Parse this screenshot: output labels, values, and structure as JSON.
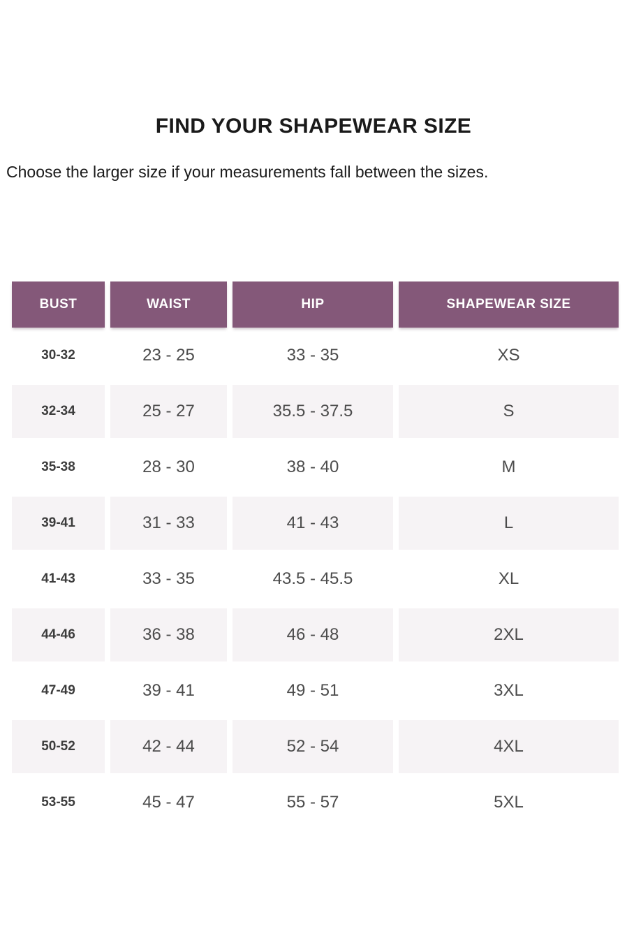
{
  "page": {
    "title": "FIND YOUR SHAPEWEAR SIZE",
    "subtitle": "Choose the larger size if your measurements fall between the sizes."
  },
  "size_chart": {
    "headers": {
      "bust": "BUST",
      "waist": "WAIST",
      "hip": "HIP",
      "size": "SHAPEWEAR SIZE"
    },
    "rows": [
      {
        "bust": "30-32",
        "waist": "23 - 25",
        "hip": "33 - 35",
        "size": "XS"
      },
      {
        "bust": "32-34",
        "waist": "25 - 27",
        "hip": "35.5 - 37.5",
        "size": "S"
      },
      {
        "bust": "35-38",
        "waist": "28 - 30",
        "hip": "38 - 40",
        "size": "M"
      },
      {
        "bust": "39-41",
        "waist": "31 - 33",
        "hip": "41 - 43",
        "size": "L"
      },
      {
        "bust": "41-43",
        "waist": "33 - 35",
        "hip": "43.5 - 45.5",
        "size": "XL"
      },
      {
        "bust": "44-46",
        "waist": "36 - 38",
        "hip": "46 - 48",
        "size": "2XL"
      },
      {
        "bust": "47-49",
        "waist": "39 - 41",
        "hip": "49 - 51",
        "size": "3XL"
      },
      {
        "bust": "50-52",
        "waist": "42 - 44",
        "hip": "52 - 54",
        "size": "4XL"
      },
      {
        "bust": "53-55",
        "waist": "45 - 47",
        "hip": "55 - 57",
        "size": "5XL"
      }
    ]
  },
  "colors": {
    "header_bg": "#845879",
    "header_text": "#ffffff",
    "alt_row_bg": "#f6f3f5",
    "body_text": "#4c4c4c",
    "bust_text": "#3c3c3c",
    "heading_text": "#1a1a1a",
    "page_bg": "#ffffff"
  }
}
